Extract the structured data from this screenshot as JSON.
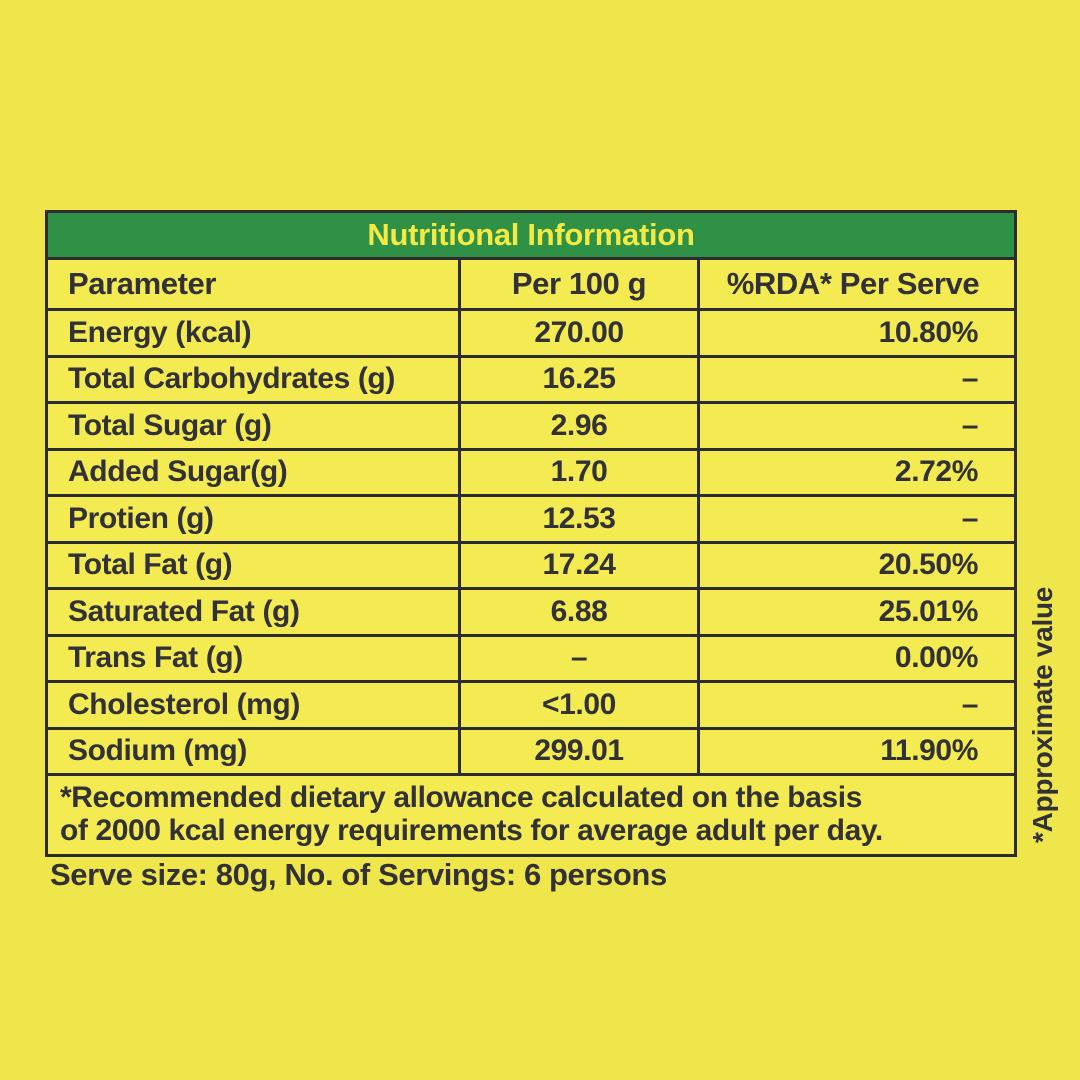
{
  "colors": {
    "background_yellow": "#efe64b",
    "cell_yellow": "#f4eb52",
    "header_green": "#2f9145",
    "title_text_yellow": "#f5ea43",
    "border_dark": "#2d2d31",
    "text_dark": "#313136"
  },
  "table": {
    "title": "Nutritional Information",
    "headers": {
      "parameter": "Parameter",
      "per100": "Per 100 g",
      "rda": "%RDA* Per Serve"
    },
    "rows": [
      {
        "parameter": "Energy (kcal)",
        "per100": "270.00",
        "rda": "10.80%"
      },
      {
        "parameter": "Total Carbohydrates (g)",
        "per100": "16.25",
        "rda": "–"
      },
      {
        "parameter": "Total Sugar (g)",
        "per100": "2.96",
        "rda": "–"
      },
      {
        "parameter": "Added Sugar(g)",
        "per100": "1.70",
        "rda": "2.72%"
      },
      {
        "parameter": "Protien (g)",
        "per100": "12.53",
        "rda": "–"
      },
      {
        "parameter": "Total Fat (g)",
        "per100": "17.24",
        "rda": "20.50%"
      },
      {
        "parameter": "Saturated Fat (g)",
        "per100": "6.88",
        "rda": "25.01%"
      },
      {
        "parameter": "Trans Fat (g)",
        "per100": "–",
        "rda": "0.00%"
      },
      {
        "parameter": "Cholesterol (mg)",
        "per100": "<1.00",
        "rda": "–"
      },
      {
        "parameter": "Sodium (mg)",
        "per100": "299.01",
        "rda": "11.90%"
      }
    ],
    "footnote_line1": "*Recommended dietary allowance calculated on the basis",
    "footnote_line2": "of 2000 kcal energy requirements for average adult per day."
  },
  "serve_info": "Serve size: 80g, No. of Servings: 6 persons",
  "approx_note": "*Approximate value"
}
